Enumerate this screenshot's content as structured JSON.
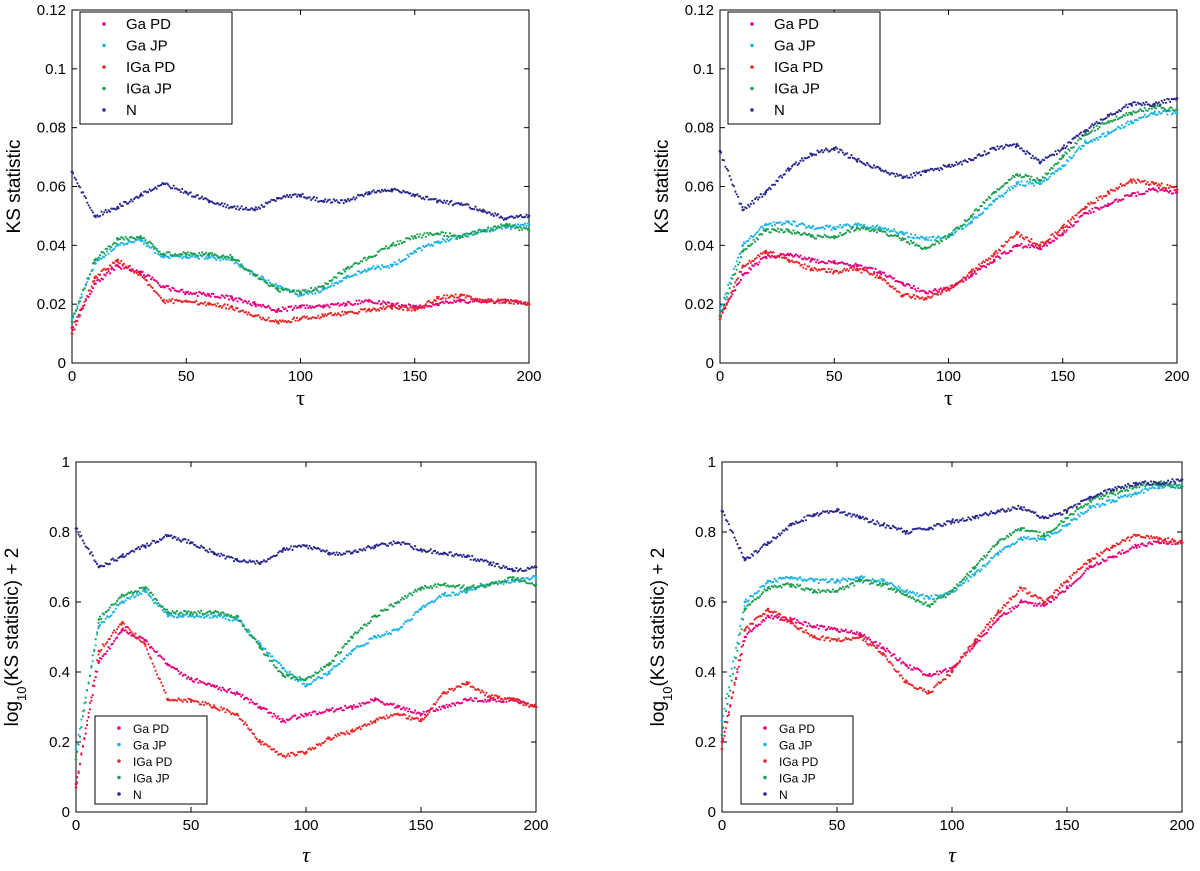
{
  "chart_data": [
    {
      "type": "scatter",
      "title": "",
      "xlabel": "τ",
      "ylabel": "KS statistic",
      "xlim": [
        0,
        200
      ],
      "ylim": [
        0,
        0.12
      ],
      "xticks": [
        0,
        50,
        100,
        150,
        200
      ],
      "yticks": [
        0,
        0.02,
        0.04,
        0.06,
        0.08,
        0.1,
        0.12
      ],
      "ytick_labels": [
        "0",
        "0.02",
        "0.04",
        "0.06",
        "0.08",
        "0.1",
        "0.12"
      ],
      "legend": "top-left",
      "grid": false,
      "series": [
        {
          "name": "Ga PD",
          "color": "#e6007e",
          "x": [
            0,
            10,
            20,
            30,
            40,
            50,
            60,
            70,
            80,
            90,
            100,
            110,
            120,
            130,
            140,
            150,
            160,
            170,
            180,
            190,
            200
          ],
          "y": [
            0.012,
            0.027,
            0.033,
            0.031,
            0.026,
            0.024,
            0.023,
            0.022,
            0.02,
            0.018,
            0.019,
            0.019,
            0.02,
            0.021,
            0.02,
            0.019,
            0.02,
            0.021,
            0.021,
            0.021,
            0.02
          ]
        },
        {
          "name": "Ga JP",
          "color": "#1eb4e6",
          "x": [
            0,
            10,
            20,
            30,
            40,
            50,
            60,
            70,
            80,
            90,
            100,
            110,
            120,
            130,
            140,
            150,
            160,
            170,
            180,
            190,
            200
          ],
          "y": [
            0.015,
            0.034,
            0.04,
            0.042,
            0.036,
            0.036,
            0.036,
            0.035,
            0.03,
            0.026,
            0.023,
            0.025,
            0.029,
            0.032,
            0.033,
            0.038,
            0.041,
            0.043,
            0.045,
            0.046,
            0.047
          ]
        },
        {
          "name": "IGa PD",
          "color": "#e62828",
          "x": [
            0,
            10,
            20,
            30,
            40,
            50,
            60,
            70,
            80,
            90,
            100,
            110,
            120,
            130,
            140,
            150,
            160,
            170,
            180,
            190,
            200
          ],
          "y": [
            0.01,
            0.029,
            0.035,
            0.03,
            0.021,
            0.021,
            0.02,
            0.019,
            0.016,
            0.014,
            0.015,
            0.016,
            0.017,
            0.018,
            0.019,
            0.018,
            0.022,
            0.023,
            0.021,
            0.021,
            0.02
          ]
        },
        {
          "name": "IGa JP",
          "color": "#1ea050",
          "x": [
            0,
            10,
            20,
            30,
            40,
            50,
            60,
            70,
            80,
            90,
            100,
            110,
            120,
            130,
            140,
            150,
            160,
            170,
            180,
            190,
            200
          ],
          "y": [
            0.014,
            0.035,
            0.042,
            0.043,
            0.037,
            0.037,
            0.037,
            0.036,
            0.03,
            0.025,
            0.024,
            0.026,
            0.032,
            0.036,
            0.04,
            0.043,
            0.044,
            0.043,
            0.045,
            0.047,
            0.045
          ]
        },
        {
          "name": "N",
          "color": "#2a2a8c",
          "x": [
            0,
            10,
            20,
            30,
            40,
            50,
            60,
            70,
            80,
            90,
            100,
            110,
            120,
            130,
            140,
            150,
            160,
            170,
            180,
            190,
            200
          ],
          "y": [
            0.065,
            0.05,
            0.053,
            0.057,
            0.061,
            0.058,
            0.055,
            0.053,
            0.052,
            0.056,
            0.057,
            0.055,
            0.055,
            0.058,
            0.059,
            0.057,
            0.055,
            0.054,
            0.052,
            0.049,
            0.05
          ]
        }
      ]
    },
    {
      "type": "scatter",
      "title": "",
      "xlabel": "τ",
      "ylabel": "KS statistic",
      "xlim": [
        0,
        200
      ],
      "ylim": [
        0,
        0.12
      ],
      "xticks": [
        0,
        50,
        100,
        150,
        200
      ],
      "yticks": [
        0,
        0.02,
        0.04,
        0.06,
        0.08,
        0.1,
        0.12
      ],
      "ytick_labels": [
        "0",
        "0.02",
        "0.04",
        "0.06",
        "0.08",
        "0.1",
        "0.12"
      ],
      "legend": "top-left",
      "grid": false,
      "series": [
        {
          "name": "Ga PD",
          "color": "#e6007e",
          "x": [
            0,
            10,
            20,
            30,
            40,
            50,
            60,
            70,
            80,
            90,
            100,
            110,
            120,
            130,
            140,
            150,
            160,
            170,
            180,
            190,
            200
          ],
          "y": [
            0.016,
            0.03,
            0.036,
            0.037,
            0.035,
            0.034,
            0.033,
            0.031,
            0.027,
            0.024,
            0.025,
            0.03,
            0.035,
            0.04,
            0.039,
            0.044,
            0.051,
            0.054,
            0.057,
            0.059,
            0.058
          ]
        },
        {
          "name": "Ga JP",
          "color": "#1eb4e6",
          "x": [
            0,
            10,
            20,
            30,
            40,
            50,
            60,
            70,
            80,
            90,
            100,
            110,
            120,
            130,
            140,
            150,
            160,
            170,
            180,
            190,
            200
          ],
          "y": [
            0.018,
            0.04,
            0.047,
            0.048,
            0.046,
            0.046,
            0.047,
            0.046,
            0.044,
            0.042,
            0.043,
            0.048,
            0.055,
            0.061,
            0.061,
            0.067,
            0.075,
            0.078,
            0.082,
            0.085,
            0.085
          ]
        },
        {
          "name": "IGa PD",
          "color": "#e62828",
          "x": [
            0,
            10,
            20,
            30,
            40,
            50,
            60,
            70,
            80,
            90,
            100,
            110,
            120,
            130,
            140,
            150,
            160,
            170,
            180,
            190,
            200
          ],
          "y": [
            0.015,
            0.033,
            0.038,
            0.035,
            0.032,
            0.031,
            0.032,
            0.029,
            0.023,
            0.022,
            0.025,
            0.031,
            0.037,
            0.044,
            0.04,
            0.046,
            0.053,
            0.058,
            0.062,
            0.061,
            0.059
          ]
        },
        {
          "name": "IGa JP",
          "color": "#1ea050",
          "x": [
            0,
            10,
            20,
            30,
            40,
            50,
            60,
            70,
            80,
            90,
            100,
            110,
            120,
            130,
            140,
            150,
            160,
            170,
            180,
            190,
            200
          ],
          "y": [
            0.016,
            0.038,
            0.045,
            0.045,
            0.043,
            0.043,
            0.046,
            0.045,
            0.042,
            0.039,
            0.043,
            0.05,
            0.058,
            0.064,
            0.062,
            0.07,
            0.078,
            0.082,
            0.085,
            0.087,
            0.086
          ]
        },
        {
          "name": "N",
          "color": "#2a2a8c",
          "x": [
            0,
            10,
            20,
            30,
            40,
            50,
            60,
            70,
            80,
            90,
            100,
            110,
            120,
            130,
            140,
            150,
            160,
            170,
            180,
            190,
            200
          ],
          "y": [
            0.072,
            0.052,
            0.058,
            0.066,
            0.071,
            0.073,
            0.069,
            0.066,
            0.063,
            0.065,
            0.067,
            0.069,
            0.073,
            0.074,
            0.068,
            0.073,
            0.079,
            0.084,
            0.088,
            0.088,
            0.09
          ]
        }
      ]
    },
    {
      "type": "scatter",
      "title": "",
      "xlabel": "τ",
      "ylabel": "log10(KS statistic) + 2",
      "ylabel_parts": [
        "log",
        "10",
        "(KS statistic) + 2"
      ],
      "xlim": [
        0,
        200
      ],
      "ylim": [
        0,
        1
      ],
      "xticks": [
        0,
        50,
        100,
        150,
        200
      ],
      "yticks": [
        0,
        0.2,
        0.4,
        0.6,
        0.8,
        1
      ],
      "ytick_labels": [
        "0",
        "0.2",
        "0.4",
        "0.6",
        "0.8",
        "1"
      ],
      "legend": "bottom-left",
      "grid": false,
      "series": [
        {
          "name": "Ga PD",
          "color": "#e6007e",
          "x": [
            0,
            10,
            20,
            30,
            40,
            50,
            60,
            70,
            80,
            90,
            100,
            110,
            120,
            130,
            140,
            150,
            160,
            170,
            180,
            190,
            200
          ],
          "y": [
            0.08,
            0.43,
            0.52,
            0.49,
            0.42,
            0.38,
            0.36,
            0.34,
            0.3,
            0.26,
            0.28,
            0.29,
            0.3,
            0.32,
            0.3,
            0.28,
            0.3,
            0.32,
            0.32,
            0.32,
            0.3
          ]
        },
        {
          "name": "Ga JP",
          "color": "#1eb4e6",
          "x": [
            0,
            10,
            20,
            30,
            40,
            50,
            60,
            70,
            80,
            90,
            100,
            110,
            120,
            130,
            140,
            150,
            160,
            170,
            180,
            190,
            200
          ],
          "y": [
            0.18,
            0.53,
            0.6,
            0.63,
            0.56,
            0.56,
            0.56,
            0.55,
            0.48,
            0.41,
            0.36,
            0.4,
            0.46,
            0.5,
            0.52,
            0.58,
            0.62,
            0.63,
            0.65,
            0.66,
            0.67
          ]
        },
        {
          "name": "IGa PD",
          "color": "#e62828",
          "x": [
            0,
            10,
            20,
            30,
            40,
            50,
            60,
            70,
            80,
            90,
            100,
            110,
            120,
            130,
            140,
            150,
            160,
            170,
            180,
            190,
            200
          ],
          "y": [
            0.07,
            0.46,
            0.54,
            0.48,
            0.32,
            0.32,
            0.3,
            0.28,
            0.2,
            0.16,
            0.17,
            0.21,
            0.23,
            0.26,
            0.28,
            0.26,
            0.34,
            0.37,
            0.33,
            0.32,
            0.3
          ]
        },
        {
          "name": "IGa JP",
          "color": "#1ea050",
          "x": [
            0,
            10,
            20,
            30,
            40,
            50,
            60,
            70,
            80,
            90,
            100,
            110,
            120,
            130,
            140,
            150,
            160,
            170,
            180,
            190,
            200
          ],
          "y": [
            0.15,
            0.55,
            0.62,
            0.64,
            0.57,
            0.57,
            0.57,
            0.56,
            0.47,
            0.39,
            0.38,
            0.42,
            0.5,
            0.56,
            0.6,
            0.64,
            0.65,
            0.64,
            0.65,
            0.67,
            0.65
          ]
        },
        {
          "name": "N",
          "color": "#2a2a8c",
          "x": [
            0,
            10,
            20,
            30,
            40,
            50,
            60,
            70,
            80,
            90,
            100,
            110,
            120,
            130,
            140,
            150,
            160,
            170,
            180,
            190,
            200
          ],
          "y": [
            0.81,
            0.7,
            0.73,
            0.76,
            0.79,
            0.77,
            0.74,
            0.72,
            0.71,
            0.75,
            0.76,
            0.74,
            0.74,
            0.76,
            0.77,
            0.75,
            0.74,
            0.73,
            0.71,
            0.69,
            0.7
          ]
        }
      ]
    },
    {
      "type": "scatter",
      "title": "",
      "xlabel": "τ",
      "ylabel": "log10(KS statistic) + 2",
      "ylabel_parts": [
        "log",
        "10",
        "(KS statistic) + 2"
      ],
      "xlim": [
        0,
        200
      ],
      "ylim": [
        0,
        1
      ],
      "xticks": [
        0,
        50,
        100,
        150,
        200
      ],
      "yticks": [
        0,
        0.2,
        0.4,
        0.6,
        0.8,
        1
      ],
      "ytick_labels": [
        "0",
        "0.2",
        "0.4",
        "0.6",
        "0.8",
        "1"
      ],
      "legend": "bottom-left",
      "grid": false,
      "series": [
        {
          "name": "Ga PD",
          "color": "#e6007e",
          "x": [
            0,
            10,
            20,
            30,
            40,
            50,
            60,
            70,
            80,
            90,
            100,
            110,
            120,
            130,
            140,
            150,
            160,
            170,
            180,
            190,
            200
          ],
          "y": [
            0.2,
            0.5,
            0.56,
            0.55,
            0.53,
            0.52,
            0.51,
            0.47,
            0.42,
            0.39,
            0.41,
            0.48,
            0.55,
            0.6,
            0.59,
            0.64,
            0.7,
            0.73,
            0.76,
            0.77,
            0.77
          ]
        },
        {
          "name": "Ga JP",
          "color": "#1eb4e6",
          "x": [
            0,
            10,
            20,
            30,
            40,
            50,
            60,
            70,
            80,
            90,
            100,
            110,
            120,
            130,
            140,
            150,
            160,
            170,
            180,
            190,
            200
          ],
          "y": [
            0.26,
            0.6,
            0.66,
            0.67,
            0.66,
            0.66,
            0.67,
            0.66,
            0.63,
            0.61,
            0.63,
            0.68,
            0.74,
            0.78,
            0.78,
            0.82,
            0.87,
            0.89,
            0.91,
            0.93,
            0.93
          ]
        },
        {
          "name": "IGa PD",
          "color": "#e62828",
          "x": [
            0,
            10,
            20,
            30,
            40,
            50,
            60,
            70,
            80,
            90,
            100,
            110,
            120,
            130,
            140,
            150,
            160,
            170,
            180,
            190,
            200
          ],
          "y": [
            0.18,
            0.52,
            0.58,
            0.54,
            0.5,
            0.49,
            0.5,
            0.45,
            0.37,
            0.34,
            0.4,
            0.49,
            0.57,
            0.64,
            0.6,
            0.66,
            0.72,
            0.76,
            0.79,
            0.78,
            0.77
          ]
        },
        {
          "name": "IGa JP",
          "color": "#1ea050",
          "x": [
            0,
            10,
            20,
            30,
            40,
            50,
            60,
            70,
            80,
            90,
            100,
            110,
            120,
            130,
            140,
            150,
            160,
            170,
            180,
            190,
            200
          ],
          "y": [
            0.22,
            0.58,
            0.64,
            0.65,
            0.63,
            0.63,
            0.66,
            0.65,
            0.62,
            0.59,
            0.63,
            0.7,
            0.77,
            0.81,
            0.79,
            0.84,
            0.89,
            0.91,
            0.93,
            0.94,
            0.93
          ]
        },
        {
          "name": "N",
          "color": "#2a2a8c",
          "x": [
            0,
            10,
            20,
            30,
            40,
            50,
            60,
            70,
            80,
            90,
            100,
            110,
            120,
            130,
            140,
            150,
            160,
            170,
            180,
            190,
            200
          ],
          "y": [
            0.86,
            0.72,
            0.77,
            0.82,
            0.85,
            0.86,
            0.84,
            0.82,
            0.8,
            0.81,
            0.83,
            0.84,
            0.86,
            0.87,
            0.84,
            0.86,
            0.9,
            0.92,
            0.94,
            0.94,
            0.95
          ]
        }
      ]
    }
  ]
}
